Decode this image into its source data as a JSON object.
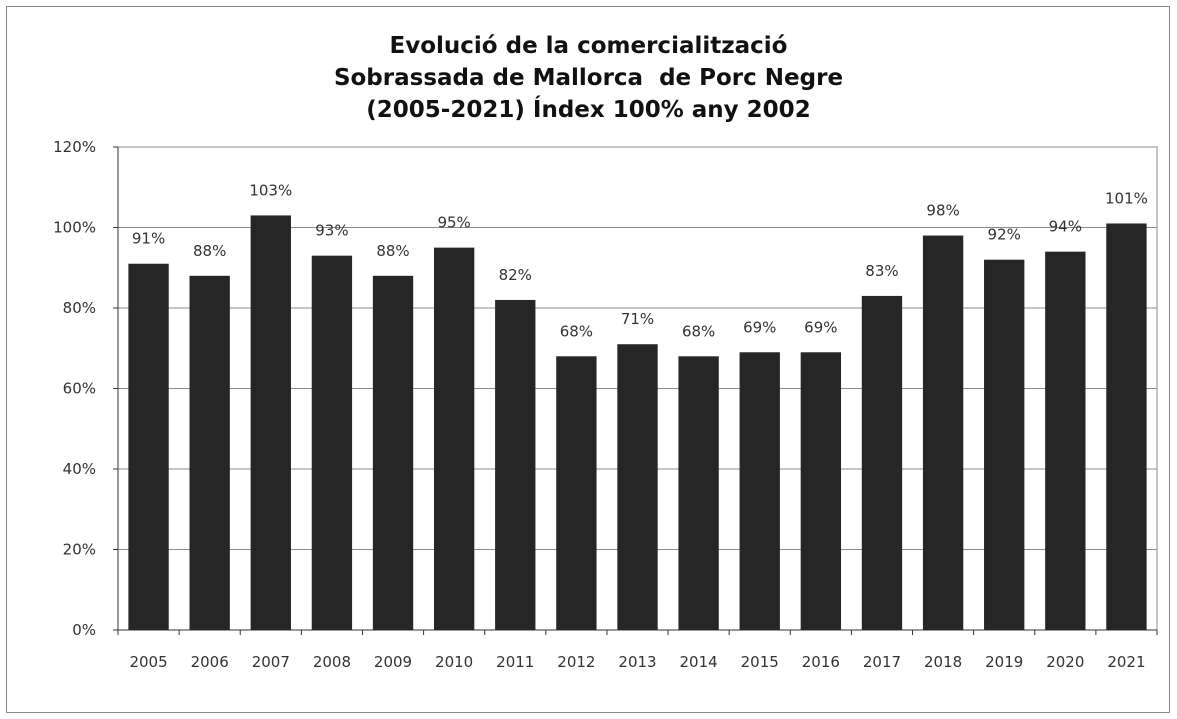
{
  "chart_data": {
    "type": "bar",
    "title_lines": [
      "Evolució de la comercialització",
      "Sobrassada de Mallorca  de Porc Negre",
      "(2005-2021) Índex 100% any 2002"
    ],
    "categories": [
      "2005",
      "2006",
      "2007",
      "2008",
      "2009",
      "2010",
      "2011",
      "2012",
      "2013",
      "2014",
      "2015",
      "2016",
      "2017",
      "2018",
      "2019",
      "2020",
      "2021"
    ],
    "values": [
      91,
      88,
      103,
      93,
      88,
      95,
      82,
      68,
      71,
      68,
      69,
      69,
      83,
      98,
      92,
      94,
      101
    ],
    "data_labels": [
      "91%",
      "88%",
      "103%",
      "93%",
      "88%",
      "95%",
      "82%",
      "68%",
      "71%",
      "68%",
      "69%",
      "69%",
      "83%",
      "98%",
      "92%",
      "94%",
      "101%"
    ],
    "y_ticks": [
      0,
      20,
      40,
      60,
      80,
      100,
      120
    ],
    "y_tick_labels": [
      "0%",
      "20%",
      "40%",
      "60%",
      "80%",
      "100%",
      "120%"
    ],
    "ylim": [
      0,
      120
    ],
    "xlabel": "",
    "ylabel": "",
    "grid": true,
    "legend": "none",
    "bar_color": "#262626"
  }
}
